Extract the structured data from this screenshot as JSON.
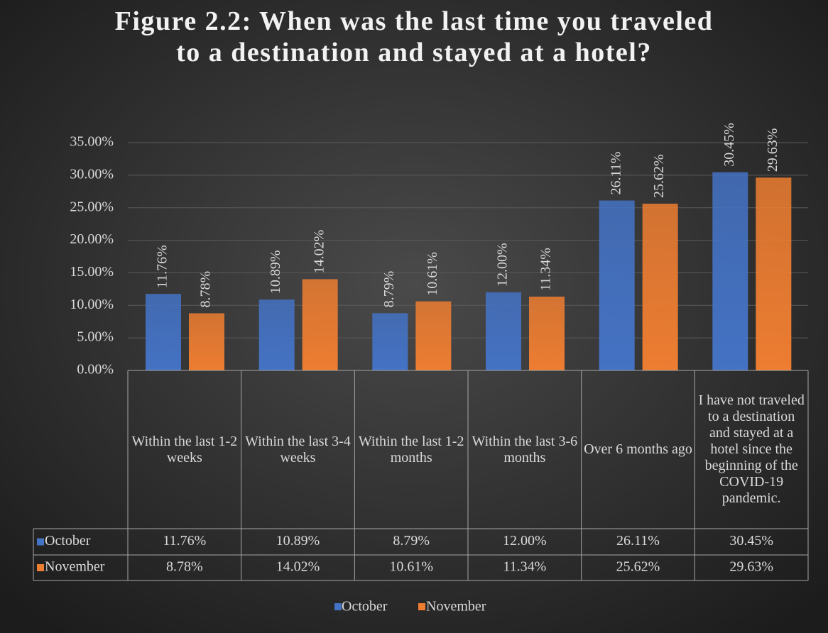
{
  "chart_data": {
    "type": "bar",
    "title": "Figure 2.2: When was the last time you traveled to a destination and stayed at a hotel?",
    "categories": [
      "Within the last 1-2 weeks",
      "Within the last 3-4 weeks",
      "Within the last 1-2 months",
      "Within the last 3-6 months",
      "Over 6 months ago",
      "I have not traveled to a destination and stayed at a hotel since the beginning of the COVID-19 pandemic."
    ],
    "series": [
      {
        "name": "October",
        "color": "#4472c4",
        "values": [
          11.76,
          10.89,
          8.79,
          12.0,
          26.11,
          30.45
        ],
        "value_labels": [
          "11.76%",
          "10.89%",
          "8.79%",
          "12.00%",
          "26.11%",
          "30.45%"
        ]
      },
      {
        "name": "November",
        "color": "#ed7d31",
        "values": [
          8.78,
          14.02,
          10.61,
          11.34,
          25.62,
          29.63
        ],
        "value_labels": [
          "8.78%",
          "14.02%",
          "10.61%",
          "11.34%",
          "25.62%",
          "29.63%"
        ]
      }
    ],
    "ylim": [
      0,
      35
    ],
    "yticks": [
      {
        "value": 0,
        "label": "0.00%"
      },
      {
        "value": 5,
        "label": "5.00%"
      },
      {
        "value": 10,
        "label": "10.00%"
      },
      {
        "value": 15,
        "label": "15.00%"
      },
      {
        "value": 20,
        "label": "20.00%"
      },
      {
        "value": 25,
        "label": "25.00%"
      },
      {
        "value": 30,
        "label": "30.00%"
      },
      {
        "value": 35,
        "label": "35.00%"
      }
    ],
    "grid": true,
    "legend": "bottom",
    "data_table": true
  }
}
